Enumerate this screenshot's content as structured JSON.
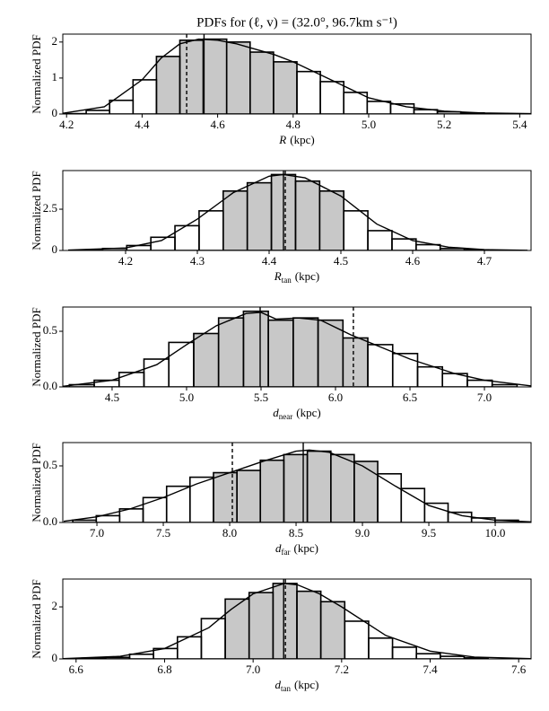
{
  "title": "PDFs for (ℓ, v) = (32.0°, 96.7km s⁻¹)",
  "chart_data": [
    {
      "type": "histogram",
      "ylabel": "Normalized PDF",
      "xlabel_symbol": "R",
      "xlabel_unit": "(kpc)",
      "xlim": [
        4.19,
        5.43
      ],
      "xticks": [
        4.2,
        4.4,
        4.6,
        4.8,
        {
          "value": 5,
          "label": "5.0"
        },
        5.2,
        5.4
      ],
      "ylim": [
        0,
        2.22
      ],
      "yticks": [
        0,
        1,
        2
      ],
      "bins": [
        4.19,
        4.252,
        4.314,
        4.376,
        4.438,
        4.5,
        4.562,
        4.624,
        4.686,
        4.748,
        4.81,
        4.872,
        4.934,
        4.996,
        5.058,
        5.12,
        5.182,
        5.244,
        5.306,
        5.368,
        5.43
      ],
      "counts": [
        0.01,
        0.1,
        0.38,
        0.95,
        1.6,
        2.05,
        2.08,
        2.0,
        1.72,
        1.45,
        1.18,
        0.9,
        0.6,
        0.35,
        0.28,
        0.12,
        0.06,
        0.03,
        0.01,
        0.005
      ],
      "credible_interval": [
        4.438,
        4.81
      ],
      "peak": 4.564,
      "dashed": 4.518,
      "kde": {
        "x": [
          4.19,
          4.3,
          4.4,
          4.45,
          4.5,
          4.55,
          4.6,
          4.65,
          4.7,
          4.75,
          4.8,
          4.9,
          5.0,
          5.1,
          5.2,
          5.3,
          5.43
        ],
        "y": [
          0.02,
          0.2,
          0.95,
          1.55,
          1.95,
          2.08,
          2.05,
          1.95,
          1.8,
          1.65,
          1.45,
          0.95,
          0.45,
          0.2,
          0.08,
          0.03,
          0.01
        ]
      }
    },
    {
      "type": "histogram",
      "ylabel": "Normalized PDF",
      "xlabel_symbol": "R",
      "xlabel_sub": "tan",
      "xlabel_unit": "(kpc)",
      "xlim": [
        4.1125,
        4.765
      ],
      "xticks": [
        4.2,
        4.3,
        4.4,
        4.5,
        4.6,
        4.7
      ],
      "ylim": [
        0,
        4.84
      ],
      "yticks": [
        0,
        2.5
      ],
      "bins": [
        4.1344,
        4.168,
        4.2016,
        4.2352,
        4.2688,
        4.3024,
        4.336,
        4.3696,
        4.4032,
        4.4368,
        4.4704,
        4.504,
        4.5376,
        4.5712,
        4.6048,
        4.6384,
        4.672,
        4.7056,
        4.7392
      ],
      "counts": [
        0.03,
        0.12,
        0.3,
        0.8,
        1.5,
        2.4,
        3.6,
        4.1,
        4.6,
        4.2,
        3.6,
        2.4,
        1.2,
        0.7,
        0.35,
        0.12,
        0.04,
        0.01
      ],
      "credible_interval": [
        4.336,
        4.504
      ],
      "peak": 4.42,
      "dashed": 4.4225,
      "kde": {
        "x": [
          4.12,
          4.2,
          4.25,
          4.3,
          4.35,
          4.4,
          4.42,
          4.45,
          4.5,
          4.55,
          4.6,
          4.65,
          4.7,
          4.76
        ],
        "y": [
          0.02,
          0.15,
          0.6,
          1.9,
          3.5,
          4.5,
          4.6,
          4.4,
          3.3,
          1.6,
          0.6,
          0.2,
          0.05,
          0.01
        ]
      }
    },
    {
      "type": "histogram",
      "ylabel": "Normalized PDF",
      "xlabel_symbol": "d",
      "xlabel_sub": "near",
      "xlabel_unit": "(kpc)",
      "xlim": [
        4.169,
        7.313
      ],
      "xticks": [
        4.5,
        {
          "value": 5,
          "label": "5.0"
        },
        5.5,
        {
          "value": 6,
          "label": "6.0"
        },
        6.5,
        {
          "value": 7,
          "label": "7.0"
        }
      ],
      "ylim": [
        0,
        0.718
      ],
      "yticks": [
        {
          "value": 0,
          "label": "0.0"
        },
        0.5
      ],
      "bins": [
        4.213,
        4.38,
        4.547,
        4.714,
        4.881,
        5.048,
        5.215,
        5.382,
        5.549,
        5.716,
        5.883,
        6.05,
        6.217,
        6.384,
        6.551,
        6.718,
        6.885,
        7.052,
        7.219
      ],
      "counts": [
        0.02,
        0.06,
        0.13,
        0.25,
        0.4,
        0.48,
        0.62,
        0.68,
        0.6,
        0.62,
        0.6,
        0.44,
        0.38,
        0.3,
        0.18,
        0.12,
        0.06,
        0.02
      ],
      "credible_interval": [
        5.048,
        6.217
      ],
      "peak": 5.494,
      "dashed": 6.12,
      "kde": {
        "x": [
          4.17,
          4.5,
          4.8,
          5.0,
          5.2,
          5.4,
          5.5,
          5.6,
          5.75,
          5.9,
          6.1,
          6.3,
          6.5,
          6.8,
          7.0,
          7.31
        ],
        "y": [
          0.005,
          0.06,
          0.2,
          0.38,
          0.55,
          0.66,
          0.67,
          0.61,
          0.62,
          0.6,
          0.47,
          0.36,
          0.25,
          0.12,
          0.06,
          0.01
        ]
      }
    },
    {
      "type": "histogram",
      "ylabel": "Normalized PDF",
      "xlabel_symbol": "d",
      "xlabel_sub": "far",
      "xlabel_unit": "(kpc)",
      "xlim": [
        6.743,
        10.27
      ],
      "xticks": [
        {
          "value": 7,
          "label": "7.0"
        },
        7.5,
        {
          "value": 8,
          "label": "8.0"
        },
        8.5,
        {
          "value": 9,
          "label": "9.0"
        },
        9.5,
        {
          "value": 10,
          "label": "10.0"
        }
      ],
      "ylim": [
        0,
        0.706
      ],
      "yticks": [
        {
          "value": 0,
          "label": "0.0"
        },
        0.5
      ],
      "bins": [
        6.818,
        6.995,
        7.171,
        7.348,
        7.525,
        7.701,
        7.878,
        8.055,
        8.231,
        8.408,
        8.585,
        8.762,
        8.938,
        9.115,
        9.292,
        9.468,
        9.645,
        9.822,
        9.999,
        10.175
      ],
      "counts": [
        0.02,
        0.06,
        0.12,
        0.22,
        0.32,
        0.4,
        0.44,
        0.46,
        0.55,
        0.6,
        0.63,
        0.6,
        0.54,
        0.43,
        0.3,
        0.17,
        0.09,
        0.04,
        0.02
      ],
      "credible_interval": [
        7.878,
        9.115
      ],
      "peak": 8.554,
      "dashed": 8.02,
      "kde": {
        "x": [
          6.75,
          7.0,
          7.25,
          7.5,
          7.75,
          8.0,
          8.25,
          8.5,
          8.6,
          8.75,
          9.0,
          9.25,
          9.5,
          9.75,
          10.0,
          10.27
        ],
        "y": [
          0.01,
          0.05,
          0.12,
          0.22,
          0.34,
          0.44,
          0.54,
          0.63,
          0.64,
          0.62,
          0.5,
          0.32,
          0.15,
          0.06,
          0.02,
          0.005
        ]
      }
    },
    {
      "type": "histogram",
      "ylabel": "Normalized PDF",
      "xlabel_symbol": "d",
      "xlabel_sub": "tan",
      "xlabel_unit": "(kpc)",
      "xlim": [
        6.57,
        7.628
      ],
      "xticks": [
        6.6,
        6.8,
        {
          "value": 7,
          "label": "7.0"
        },
        7.2,
        7.4,
        7.6
      ],
      "ylim": [
        0,
        3.07
      ],
      "yticks": [
        0,
        2
      ],
      "bins": [
        6.613,
        6.667,
        6.721,
        6.775,
        6.829,
        6.883,
        6.937,
        6.991,
        7.045,
        7.099,
        7.153,
        7.207,
        7.261,
        7.315,
        7.369,
        7.423,
        7.477,
        7.531
      ],
      "counts": [
        0.03,
        0.06,
        0.18,
        0.4,
        0.85,
        1.55,
        2.3,
        2.55,
        2.9,
        2.6,
        2.2,
        1.45,
        0.8,
        0.45,
        0.2,
        0.1,
        0.04
      ],
      "credible_interval": [
        6.937,
        7.207
      ],
      "peak": 7.069,
      "dashed": 7.073,
      "kde": {
        "x": [
          6.57,
          6.7,
          6.8,
          6.9,
          6.95,
          7.0,
          7.07,
          7.1,
          7.15,
          7.2,
          7.3,
          7.4,
          7.5,
          7.63
        ],
        "y": [
          0.01,
          0.1,
          0.4,
          1.2,
          1.9,
          2.5,
          2.9,
          2.85,
          2.5,
          2.0,
          0.9,
          0.3,
          0.07,
          0.01
        ]
      }
    }
  ]
}
